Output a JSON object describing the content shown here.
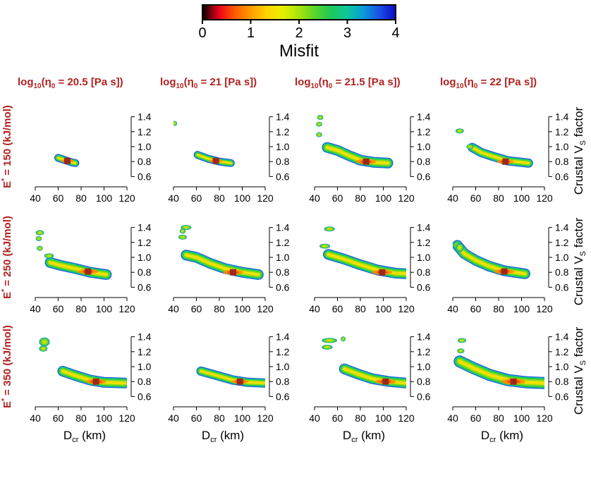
{
  "colorbar": {
    "label": "Misfit",
    "ticks": [
      "0",
      "1",
      "2",
      "3",
      "4"
    ],
    "range": [
      0,
      4
    ],
    "colors": [
      "#000000",
      "#e8001c",
      "#ff5a00",
      "#ff9c00",
      "#ffd400",
      "#e6f000",
      "#a8e40c",
      "#58d42a",
      "#1ec85a",
      "#0cc89c",
      "#0a9ad8",
      "#1a50e6",
      "#0a0ac8"
    ]
  },
  "column_titles": [
    {
      "base": "log",
      "sub": "10",
      "eta": "η",
      "eta_sub": "0",
      "value": " = 20.5 [Pa s])"
    },
    {
      "base": "log",
      "sub": "10",
      "eta": "η",
      "eta_sub": "0",
      "value": " = 21 [Pa s])"
    },
    {
      "base": "log",
      "sub": "10",
      "eta": "η",
      "eta_sub": "0",
      "value": " = 21.5 [Pa s])"
    },
    {
      "base": "log",
      "sub": "10",
      "eta": "η",
      "eta_sub": "0",
      "value": " = 22 [Pa s])"
    }
  ],
  "row_titles": [
    {
      "base": "E",
      "sup": "*",
      "value": " = 150 (kJ/mol)"
    },
    {
      "base": "E",
      "sup": "*",
      "value": " = 250 (kJ/mol)"
    },
    {
      "base": "E",
      "sup": "*",
      "value": " = 350 (kJ/mol)"
    }
  ],
  "title_color": "#b22222",
  "x_axis": {
    "label_base": "D",
    "label_sub": "cr",
    "label_unit": " (km)",
    "ticks": [
      "40",
      "60",
      "80",
      "100",
      "120"
    ]
  },
  "y_axis": {
    "label_base": "Crustal V",
    "label_sub": "S",
    "label_unit": " factor",
    "ticks": [
      "0.6",
      "0.8",
      "1.0",
      "1.2",
      "1.4"
    ]
  },
  "chart_data": {
    "type": "scatter",
    "description_of_encoding": "misfit-colored model density clouds; best model marked by dark red square",
    "xlim": [
      40,
      120
    ],
    "ylim": [
      0.5,
      1.5
    ],
    "best_marker_color": "#9b2a1e",
    "panels": [
      {
        "row": 0,
        "col": 0,
        "eta0_log": 20.5,
        "E_star": 150,
        "best": [
          68,
          0.81
        ],
        "bands": [
          {
            "pts": [
              [
                60,
                0.85
              ],
              [
                66,
                0.82
              ],
              [
                72,
                0.79
              ],
              [
                75,
                0.78
              ]
            ],
            "w": 4
          }
        ],
        "blobs": []
      },
      {
        "row": 0,
        "col": 1,
        "eta0_log": 21,
        "E_star": 150,
        "best": [
          77,
          0.81
        ],
        "bands": [
          {
            "pts": [
              [
                61,
                0.89
              ],
              [
                70,
                0.84
              ],
              [
                80,
                0.8
              ],
              [
                90,
                0.78
              ]
            ],
            "w": 4
          }
        ],
        "blobs": [
          [
            41,
            1.31,
            1.5,
            0.015
          ]
        ]
      },
      {
        "row": 0,
        "col": 2,
        "eta0_log": 21.5,
        "E_star": 150,
        "best": [
          85,
          0.8
        ],
        "bands": [
          {
            "pts": [
              [
                51,
                0.99
              ],
              [
                60,
                0.95
              ],
              [
                70,
                0.88
              ],
              [
                80,
                0.82
              ],
              [
                92,
                0.79
              ],
              [
                104,
                0.78
              ]
            ],
            "w": 6
          }
        ],
        "blobs": [
          [
            45,
            1.39,
            2,
            0.015
          ],
          [
            44,
            1.3,
            2,
            0.02
          ],
          [
            44,
            1.16,
            2,
            0.02
          ]
        ]
      },
      {
        "row": 0,
        "col": 3,
        "eta0_log": 22,
        "E_star": 150,
        "best": [
          86,
          0.8
        ],
        "bands": [
          {
            "pts": [
              [
                57,
                0.99
              ],
              [
                65,
                0.92
              ],
              [
                75,
                0.87
              ],
              [
                88,
                0.81
              ],
              [
                106,
                0.78
              ]
            ],
            "w": 5
          }
        ],
        "blobs": [
          [
            46,
            1.21,
            3,
            0.015
          ],
          [
            55,
            1.0,
            2.5,
            0.015
          ]
        ]
      },
      {
        "row": 1,
        "col": 0,
        "eta0_log": 20.5,
        "E_star": 250,
        "best": [
          86,
          0.81
        ],
        "bands": [
          {
            "pts": [
              [
                53,
                0.93
              ],
              [
                63,
                0.89
              ],
              [
                75,
                0.85
              ],
              [
                88,
                0.8
              ],
              [
                102,
                0.77
              ]
            ],
            "w": 6
          }
        ],
        "blobs": [
          [
            44,
            1.33,
            3,
            0.025
          ],
          [
            43,
            1.25,
            2,
            0.02
          ],
          [
            44,
            1.12,
            2,
            0.015
          ],
          [
            52,
            1.02,
            3.5,
            0.02
          ]
        ]
      },
      {
        "row": 1,
        "col": 1,
        "eta0_log": 21,
        "E_star": 250,
        "best": [
          92,
          0.8
        ],
        "bands": [
          {
            "pts": [
              [
                51,
                1.03
              ],
              [
                60,
                1.0
              ],
              [
                72,
                0.92
              ],
              [
                85,
                0.85
              ],
              [
                100,
                0.8
              ],
              [
                114,
                0.77
              ]
            ],
            "w": 6
          }
        ],
        "blobs": [
          [
            51,
            1.4,
            4,
            0.015
          ],
          [
            48,
            1.35,
            2,
            0.02
          ],
          [
            48,
            1.27,
            3,
            0.015
          ]
        ]
      },
      {
        "row": 1,
        "col": 2,
        "eta0_log": 21.5,
        "E_star": 250,
        "best": [
          99,
          0.8
        ],
        "bands": [
          {
            "pts": [
              [
                52,
                1.04
              ],
              [
                65,
                0.98
              ],
              [
                80,
                0.9
              ],
              [
                95,
                0.83
              ],
              [
                110,
                0.79
              ],
              [
                120,
                0.78
              ]
            ],
            "w": 6
          }
        ],
        "blobs": [
          [
            53,
            1.38,
            4,
            0.02
          ],
          [
            49,
            1.15,
            4,
            0.02
          ]
        ]
      },
      {
        "row": 1,
        "col": 3,
        "eta0_log": 22,
        "E_star": 250,
        "best": [
          85,
          0.81
        ],
        "bands": [
          {
            "pts": [
              [
                44,
                1.16
              ],
              [
                50,
                1.05
              ],
              [
                60,
                0.96
              ],
              [
                72,
                0.88
              ],
              [
                85,
                0.82
              ],
              [
                103,
                0.78
              ]
            ],
            "w": 6
          }
        ],
        "blobs": [
          [
            46,
            1.13,
            3,
            0.05
          ]
        ]
      },
      {
        "row": 2,
        "col": 0,
        "eta0_log": 20.5,
        "E_star": 350,
        "best": [
          93,
          0.8
        ],
        "bands": [
          {
            "pts": [
              [
                64,
                0.94
              ],
              [
                75,
                0.88
              ],
              [
                88,
                0.82
              ],
              [
                100,
                0.79
              ],
              [
                118,
                0.78
              ]
            ],
            "w": 6
          }
        ],
        "blobs": [
          [
            48,
            1.33,
            4,
            0.05
          ],
          [
            47,
            1.24,
            3,
            0.03
          ]
        ]
      },
      {
        "row": 2,
        "col": 1,
        "eta0_log": 21,
        "E_star": 350,
        "best": [
          98,
          0.8
        ],
        "bands": [
          {
            "pts": [
              [
                64,
                0.94
              ],
              [
                78,
                0.88
              ],
              [
                92,
                0.82
              ],
              [
                105,
                0.79
              ],
              [
                120,
                0.78
              ]
            ],
            "w": 5
          }
        ],
        "blobs": []
      },
      {
        "row": 2,
        "col": 2,
        "eta0_log": 21.5,
        "E_star": 350,
        "best": [
          102,
          0.8
        ],
        "bands": [
          {
            "pts": [
              [
                66,
                0.97
              ],
              [
                78,
                0.9
              ],
              [
                90,
                0.84
              ],
              [
                105,
                0.8
              ],
              [
                120,
                0.78
              ]
            ],
            "w": 6
          }
        ],
        "blobs": [
          [
            53,
            1.35,
            6,
            0.025
          ],
          [
            51,
            1.26,
            4,
            0.015
          ],
          [
            65,
            1.37,
            1,
            0.01
          ]
        ]
      },
      {
        "row": 2,
        "col": 3,
        "eta0_log": 22,
        "E_star": 350,
        "best": [
          93,
          0.8
        ],
        "bands": [
          {
            "pts": [
              [
                46,
                1.07
              ],
              [
                58,
                0.98
              ],
              [
                72,
                0.89
              ],
              [
                88,
                0.82
              ],
              [
                105,
                0.79
              ],
              [
                120,
                0.78
              ]
            ],
            "w": 7
          }
        ],
        "blobs": [
          [
            48,
            1.35,
            3,
            0.015
          ],
          [
            47,
            1.21,
            2.5,
            0.015
          ]
        ]
      }
    ]
  }
}
